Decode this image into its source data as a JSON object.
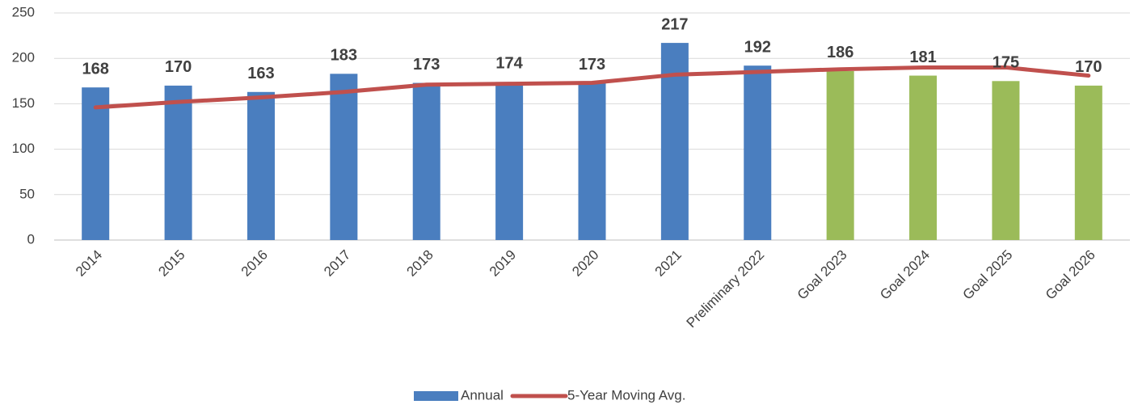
{
  "chart_data": {
    "type": "bar",
    "categories": [
      "2014",
      "2015",
      "2016",
      "2017",
      "2018",
      "2019",
      "2020",
      "2021",
      "Preliminary 2022",
      "Goal 2023",
      "Goal 2024",
      "Goal 2025",
      "Goal 2026"
    ],
    "series": [
      {
        "name": "Annual",
        "type": "bar",
        "color": "#4a7ebf",
        "colors": [
          "#4a7ebf",
          "#4a7ebf",
          "#4a7ebf",
          "#4a7ebf",
          "#4a7ebf",
          "#4a7ebf",
          "#4a7ebf",
          "#4a7ebf",
          "#4a7ebf",
          "#9bbb59",
          "#9bbb59",
          "#9bbb59",
          "#9bbb59"
        ],
        "values": [
          168,
          170,
          163,
          183,
          173,
          174,
          173,
          217,
          192,
          186,
          181,
          175,
          170
        ]
      },
      {
        "name": "5-Year Moving Avg.",
        "type": "line",
        "color": "#c0504d",
        "values": [
          146,
          152,
          157,
          163,
          171,
          172,
          173,
          182,
          185,
          188,
          190,
          190,
          181
        ]
      }
    ],
    "ylim": [
      0,
      250
    ],
    "yticks": [
      0,
      50,
      100,
      150,
      200,
      250
    ],
    "grid": true,
    "legend": "bottom"
  }
}
